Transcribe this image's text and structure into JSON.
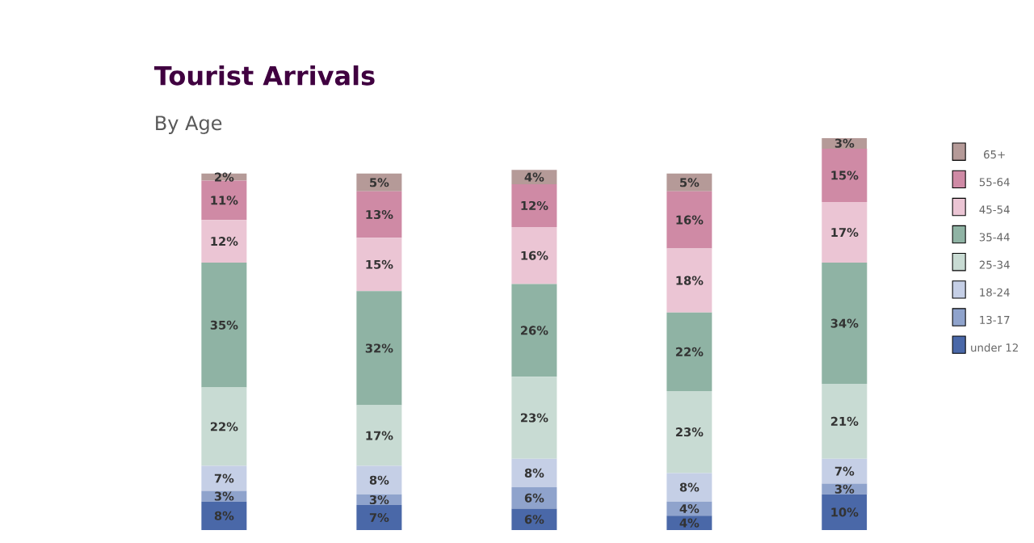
{
  "chart_data": {
    "type": "bar",
    "title": "Tourist Arrivals",
    "subtitle": "By Age",
    "stacked": true,
    "legend": "right",
    "categories": [
      null,
      null,
      null,
      null,
      null
    ],
    "series": [
      {
        "name": "under 12",
        "color": "#4a68a8",
        "values": [
          8,
          7,
          6,
          4,
          10
        ],
        "value_labels": [
          "8%",
          "7%",
          "6%",
          "4%",
          "10%"
        ]
      },
      {
        "name": "13-17",
        "color": "#8fa3cc",
        "values": [
          3,
          3,
          6,
          4,
          3
        ],
        "value_labels": [
          "3%",
          "3%",
          "6%",
          "4%",
          "3%"
        ]
      },
      {
        "name": "18-24",
        "color": "#c5cfe6",
        "values": [
          7,
          8,
          8,
          8,
          7
        ],
        "value_labels": [
          "7%",
          "8%",
          "8%",
          "8%",
          "7%"
        ]
      },
      {
        "name": "25-34",
        "color": "#c8dbd3",
        "values": [
          22,
          17,
          23,
          23,
          21
        ],
        "value_labels": [
          "22%",
          "17%",
          "23%",
          "23%",
          "21%"
        ]
      },
      {
        "name": "35-44",
        "color": "#8fb3a4",
        "values": [
          35,
          32,
          26,
          22,
          34
        ],
        "value_labels": [
          "35%",
          "32%",
          "26%",
          "22%",
          "34%"
        ]
      },
      {
        "name": "45-54",
        "color": "#ebc5d4",
        "values": [
          12,
          15,
          16,
          18,
          17
        ],
        "value_labels": [
          "12%",
          "15%",
          "16%",
          "18%",
          "17%"
        ]
      },
      {
        "name": "55-64",
        "color": "#cf8aa5",
        "values": [
          11,
          13,
          12,
          16,
          15
        ],
        "value_labels": [
          "11%",
          "13%",
          "12%",
          "16%",
          "15%"
        ]
      },
      {
        "name": "65+",
        "color": "#b59a98",
        "values": [
          2,
          5,
          4,
          5,
          3
        ],
        "value_labels": [
          "2%",
          "5%",
          "4%",
          "5%",
          "3%"
        ]
      }
    ]
  }
}
